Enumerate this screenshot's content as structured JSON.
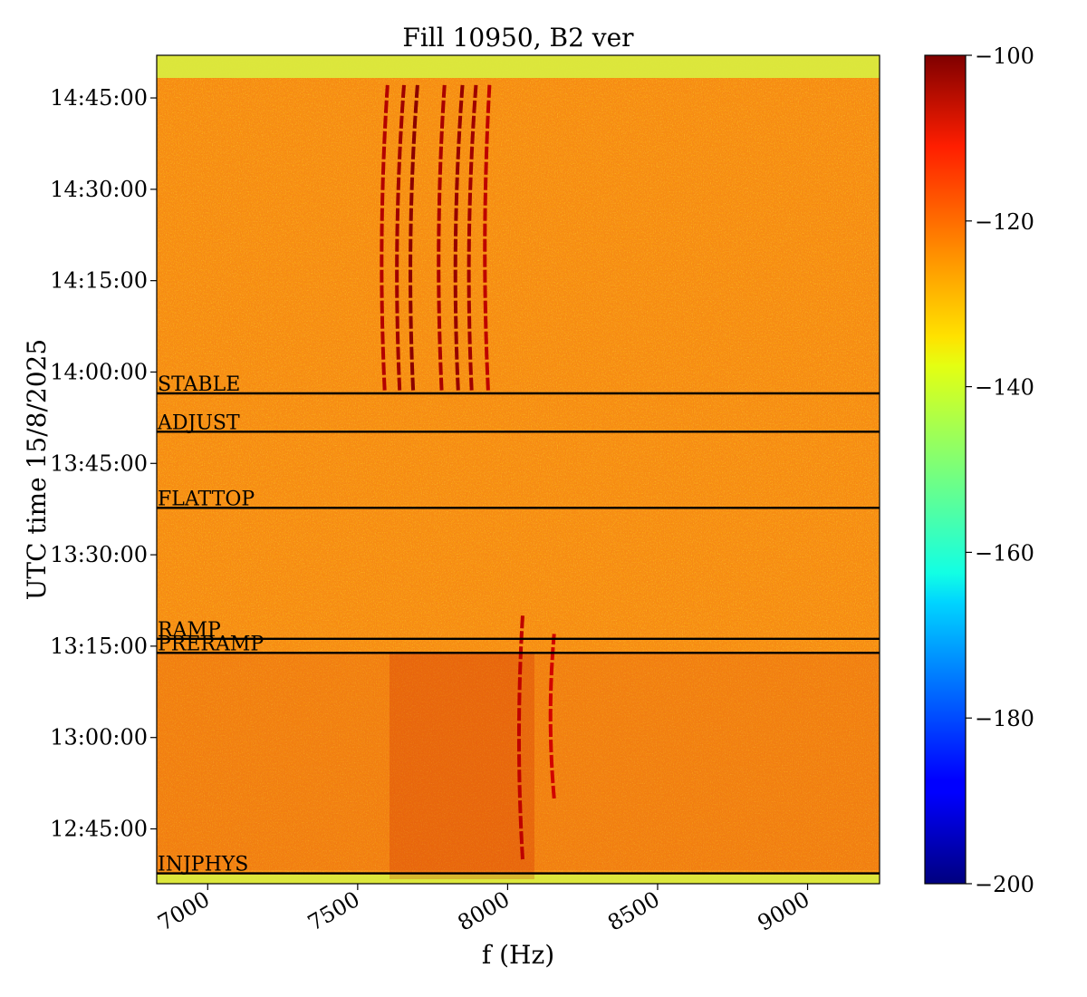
{
  "chart_data": {
    "type": "heatmap",
    "title": "Fill 10950, B2 ver",
    "xlabel": "f (Hz)",
    "ylabel": "UTC time 15/8/2025",
    "xlim": [
      6830,
      9240
    ],
    "ylim_minutes": [
      756,
      892
    ],
    "x_ticks": [
      {
        "label": "7000",
        "value": 7000
      },
      {
        "label": "7500",
        "value": 7500
      },
      {
        "label": "8000",
        "value": 8000
      },
      {
        "label": "8500",
        "value": 8500
      },
      {
        "label": "9000",
        "value": 9000
      }
    ],
    "y_ticks": [
      {
        "label": "12:45:00",
        "value": 765
      },
      {
        "label": "13:00:00",
        "value": 780
      },
      {
        "label": "13:15:00",
        "value": 795
      },
      {
        "label": "13:30:00",
        "value": 810
      },
      {
        "label": "13:45:00",
        "value": 825
      },
      {
        "label": "14:00:00",
        "value": 840
      },
      {
        "label": "14:15:00",
        "value": 855
      },
      {
        "label": "14:30:00",
        "value": 870
      },
      {
        "label": "14:45:00",
        "value": 885
      }
    ],
    "colorbar": {
      "colormap": "jet",
      "range": [
        -200,
        -100
      ],
      "ticks": [
        {
          "label": "−100",
          "value": -100
        },
        {
          "label": "−120",
          "value": -120
        },
        {
          "label": "−140",
          "value": -140
        },
        {
          "label": "−160",
          "value": -160
        },
        {
          "label": "−180",
          "value": -180
        },
        {
          "label": "−200",
          "value": -200
        }
      ]
    },
    "phases": [
      {
        "label": "STABLE",
        "minutes": 836.5
      },
      {
        "label": "ADJUST",
        "minutes": 830.2
      },
      {
        "label": "FLATTOP",
        "minutes": 817.7
      },
      {
        "label": "RAMP",
        "minutes": 796.2
      },
      {
        "label": "PRERAMP",
        "minutes": 793.9
      },
      {
        "label": "INJPHYS",
        "minutes": 757.7
      }
    ],
    "background_level_db": -124,
    "lines": [
      {
        "f_start": 7590,
        "f_end": 7600,
        "t_start": 837,
        "t_end": 887.5,
        "level_db": -105
      },
      {
        "f_start": 7640,
        "f_end": 7655,
        "t_start": 837,
        "t_end": 887.5,
        "level_db": -103
      },
      {
        "f_start": 7685,
        "f_end": 7700,
        "t_start": 837,
        "t_end": 887.5,
        "level_db": -101
      },
      {
        "f_start": 7780,
        "f_end": 7790,
        "t_start": 837,
        "t_end": 887.5,
        "level_db": -104
      },
      {
        "f_start": 7835,
        "f_end": 7850,
        "t_start": 837,
        "t_end": 887.5,
        "level_db": -102
      },
      {
        "f_start": 7880,
        "f_end": 7895,
        "t_start": 837,
        "t_end": 887.5,
        "level_db": -103
      },
      {
        "f_start": 7935,
        "f_end": 7940,
        "t_start": 837,
        "t_end": 887.5,
        "level_db": -106
      },
      {
        "f_start": 8050,
        "f_end": 8050,
        "t_start": 760,
        "t_end": 800,
        "level_db": -106
      },
      {
        "f_start": 8155,
        "f_end": 8155,
        "t_start": 770,
        "t_end": 797,
        "level_db": -108
      }
    ]
  }
}
